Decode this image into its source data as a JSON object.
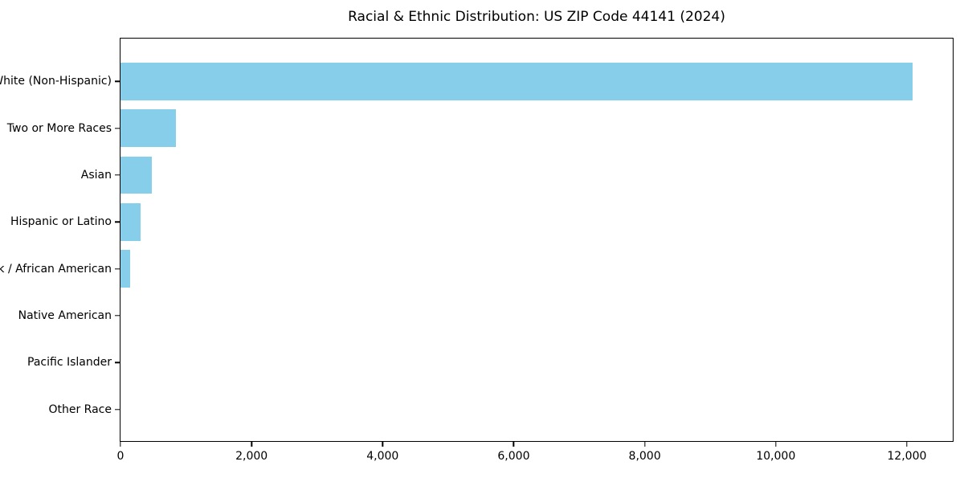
{
  "page": {
    "background": "#ffffff"
  },
  "chart_data": {
    "type": "bar",
    "orientation": "horizontal",
    "title": "Racial & Ethnic Distribution: US ZIP Code 44141 (2024)",
    "categories": [
      "White (Non-Hispanic)",
      "Two or More Races",
      "Asian",
      "Hispanic or Latino",
      "Black / African American",
      "Native American",
      "Pacific Islander",
      "Other Race"
    ],
    "values": [
      12090,
      840,
      480,
      310,
      150,
      0,
      0,
      0
    ],
    "xlabel": "",
    "ylabel": "",
    "xlim": [
      0,
      12700
    ],
    "xticks": [
      0,
      2000,
      4000,
      6000,
      8000,
      10000,
      12000
    ],
    "xtick_labels": [
      "0",
      "2,000",
      "4,000",
      "6,000",
      "8,000",
      "10,000",
      "12,000"
    ],
    "bar_color": "#87CEEB",
    "axis_color": "#000000",
    "text_color": "#000000",
    "grid": false,
    "legend": false
  }
}
